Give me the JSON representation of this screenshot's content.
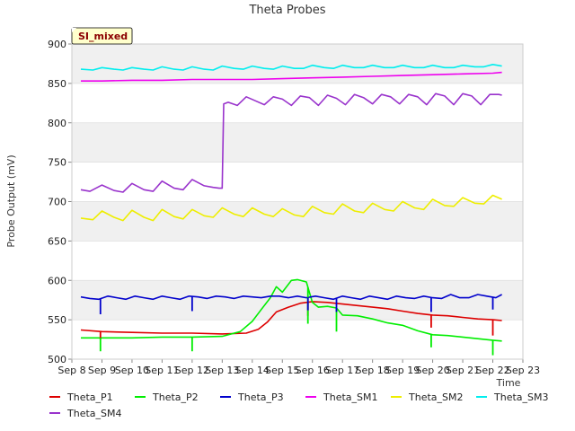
{
  "chart_data": {
    "type": "line",
    "title": "Theta Probes",
    "badge": "SI_mixed",
    "xlabel": "Time",
    "ylabel": "Probe Output (mV)",
    "xlim": [
      8,
      23
    ],
    "ylim": [
      500,
      900
    ],
    "x_ticks": [
      8,
      9,
      10,
      11,
      12,
      13,
      14,
      15,
      16,
      17,
      18,
      19,
      20,
      21,
      22,
      23
    ],
    "x_tick_labels": [
      "Sep 8",
      "Sep 9",
      "Sep 10",
      "Sep 11",
      "Sep 12",
      "Sep 13",
      "Sep 14",
      "Sep 15",
      "Sep 16",
      "Sep 17",
      "Sep 18",
      "Sep 19",
      "Sep 20",
      "Sep 21",
      "Sep 22",
      "Sep 23"
    ],
    "y_ticks": [
      500,
      550,
      600,
      650,
      700,
      750,
      800,
      850,
      900
    ],
    "y_tick_labels": [
      "500",
      "550",
      "600",
      "650",
      "700",
      "750",
      "800",
      "850",
      "900"
    ],
    "band_color": "#f0f0f0",
    "series": [
      {
        "name": "Theta_P1",
        "color": "#dd0000",
        "x": [
          8.3,
          9.0,
          10.0,
          11.0,
          12.0,
          13.0,
          13.8,
          14.2,
          14.5,
          14.8,
          15.2,
          15.6,
          16.0,
          16.5,
          17.0,
          17.5,
          18.0,
          18.5,
          19.0,
          19.5,
          20.0,
          20.5,
          21.0,
          21.5,
          22.0,
          22.3
        ],
        "y": [
          537,
          535,
          534,
          533,
          533,
          532,
          533,
          538,
          547,
          560,
          566,
          571,
          573,
          572,
          570,
          568,
          566,
          564,
          561,
          558,
          556,
          555,
          553,
          551,
          550,
          549
        ]
      },
      {
        "name": "Theta_P2",
        "color": "#00ee00",
        "x": [
          8.3,
          9.0,
          10.0,
          11.0,
          12.0,
          13.0,
          13.6,
          14.0,
          14.3,
          14.6,
          14.8,
          15.0,
          15.2,
          15.3,
          15.5,
          15.8,
          16.0,
          16.2,
          16.5,
          16.8,
          17.0,
          17.5,
          18.0,
          18.5,
          19.0,
          19.5,
          20.0,
          20.5,
          21.0,
          21.5,
          22.0,
          22.3
        ],
        "y": [
          527,
          527,
          527,
          528,
          528,
          529,
          535,
          548,
          563,
          578,
          592,
          585,
          595,
          600,
          601,
          598,
          572,
          566,
          567,
          565,
          556,
          555,
          551,
          546,
          543,
          536,
          531,
          530,
          528,
          526,
          524,
          523
        ]
      },
      {
        "name": "Theta_P3",
        "color": "#0000cc",
        "x": [
          8.3,
          8.6,
          8.9,
          9.2,
          9.5,
          9.8,
          10.1,
          10.4,
          10.7,
          11.0,
          11.3,
          11.6,
          11.9,
          12.2,
          12.5,
          12.8,
          13.1,
          13.4,
          13.7,
          14.0,
          14.3,
          14.6,
          14.9,
          15.2,
          15.5,
          15.8,
          16.1,
          16.4,
          16.7,
          17.0,
          17.3,
          17.6,
          17.9,
          18.2,
          18.5,
          18.8,
          19.1,
          19.4,
          19.7,
          20.0,
          20.3,
          20.6,
          20.9,
          21.2,
          21.5,
          21.8,
          22.1,
          22.3
        ],
        "y": [
          579,
          577,
          576,
          580,
          578,
          576,
          580,
          578,
          576,
          580,
          578,
          576,
          580,
          579,
          577,
          580,
          579,
          577,
          580,
          579,
          578,
          580,
          580,
          578,
          580,
          578,
          580,
          578,
          576,
          580,
          578,
          576,
          580,
          578,
          576,
          580,
          578,
          577,
          580,
          578,
          577,
          582,
          578,
          578,
          582,
          580,
          578,
          582
        ]
      },
      {
        "name": "Theta_SM1",
        "color": "#ee00ee",
        "x": [
          8.3,
          9.0,
          10.0,
          11.0,
          12.0,
          13.0,
          14.0,
          15.0,
          16.0,
          17.0,
          18.0,
          19.0,
          20.0,
          21.0,
          22.0,
          22.3
        ],
        "y": [
          853,
          853,
          854,
          854,
          855,
          855,
          855,
          856,
          857,
          858,
          859,
          860,
          861,
          862,
          863,
          864
        ]
      },
      {
        "name": "Theta_SM2",
        "color": "#eeee00",
        "x": [
          8.3,
          8.7,
          9.0,
          9.4,
          9.7,
          10.0,
          10.4,
          10.7,
          11.0,
          11.4,
          11.7,
          12.0,
          12.4,
          12.7,
          13.0,
          13.4,
          13.7,
          14.0,
          14.4,
          14.7,
          15.0,
          15.4,
          15.7,
          16.0,
          16.4,
          16.7,
          17.0,
          17.4,
          17.7,
          18.0,
          18.4,
          18.7,
          19.0,
          19.4,
          19.7,
          20.0,
          20.4,
          20.7,
          21.0,
          21.4,
          21.7,
          22.0,
          22.3
        ],
        "y": [
          679,
          677,
          688,
          680,
          676,
          689,
          680,
          676,
          690,
          681,
          678,
          690,
          682,
          680,
          692,
          684,
          681,
          692,
          684,
          681,
          691,
          683,
          681,
          694,
          686,
          684,
          697,
          688,
          686,
          698,
          690,
          688,
          700,
          692,
          690,
          703,
          695,
          694,
          705,
          698,
          697,
          708,
          703
        ]
      },
      {
        "name": "Theta_SM3",
        "color": "#00eeee",
        "x": [
          8.3,
          8.7,
          9.0,
          9.4,
          9.7,
          10.0,
          10.4,
          10.7,
          11.0,
          11.4,
          11.7,
          12.0,
          12.4,
          12.7,
          13.0,
          13.4,
          13.7,
          14.0,
          14.4,
          14.7,
          15.0,
          15.4,
          15.7,
          16.0,
          16.4,
          16.7,
          17.0,
          17.4,
          17.7,
          18.0,
          18.4,
          18.7,
          19.0,
          19.4,
          19.7,
          20.0,
          20.4,
          20.7,
          21.0,
          21.4,
          21.7,
          22.0,
          22.3
        ],
        "y": [
          868,
          867,
          870,
          868,
          867,
          870,
          868,
          867,
          871,
          868,
          867,
          871,
          868,
          867,
          872,
          869,
          868,
          872,
          869,
          868,
          872,
          869,
          869,
          873,
          870,
          869,
          873,
          870,
          870,
          873,
          870,
          870,
          873,
          870,
          870,
          873,
          870,
          870,
          873,
          871,
          871,
          874,
          872
        ]
      },
      {
        "name": "Theta_SM4",
        "color": "#9933cc",
        "x": [
          8.3,
          8.6,
          9.0,
          9.4,
          9.7,
          10.0,
          10.4,
          10.7,
          11.0,
          11.4,
          11.7,
          12.0,
          12.4,
          12.7,
          12.9,
          13.0,
          13.05,
          13.2,
          13.5,
          13.8,
          14.1,
          14.4,
          14.7,
          15.0,
          15.3,
          15.6,
          15.9,
          16.2,
          16.5,
          16.8,
          17.1,
          17.4,
          17.7,
          18.0,
          18.3,
          18.6,
          18.9,
          19.2,
          19.5,
          19.8,
          20.1,
          20.4,
          20.7,
          21.0,
          21.3,
          21.6,
          21.9,
          22.2,
          22.3
        ],
        "y": [
          715,
          713,
          721,
          714,
          712,
          723,
          715,
          713,
          726,
          717,
          715,
          728,
          720,
          718,
          717,
          717,
          824,
          826,
          822,
          833,
          828,
          823,
          833,
          830,
          822,
          834,
          832,
          822,
          835,
          831,
          823,
          836,
          832,
          824,
          836,
          833,
          824,
          836,
          833,
          823,
          837,
          834,
          823,
          837,
          834,
          823,
          836,
          836,
          835
        ]
      }
    ],
    "spikes": [
      {
        "series": "Theta_P1",
        "x": [
          8.95,
          15.85,
          19.95,
          22.0
        ],
        "to": [
          525,
          555,
          540,
          530
        ]
      },
      {
        "series": "Theta_P2",
        "x": [
          8.95,
          12.0,
          15.85,
          16.8,
          19.95,
          22.0
        ],
        "to": [
          510,
          510,
          545,
          535,
          515,
          505
        ]
      },
      {
        "series": "Theta_P3",
        "x": [
          8.95,
          12.0,
          15.85,
          16.8,
          19.95,
          22.0
        ],
        "to": [
          557,
          561,
          562,
          560,
          560,
          563
        ]
      }
    ]
  }
}
